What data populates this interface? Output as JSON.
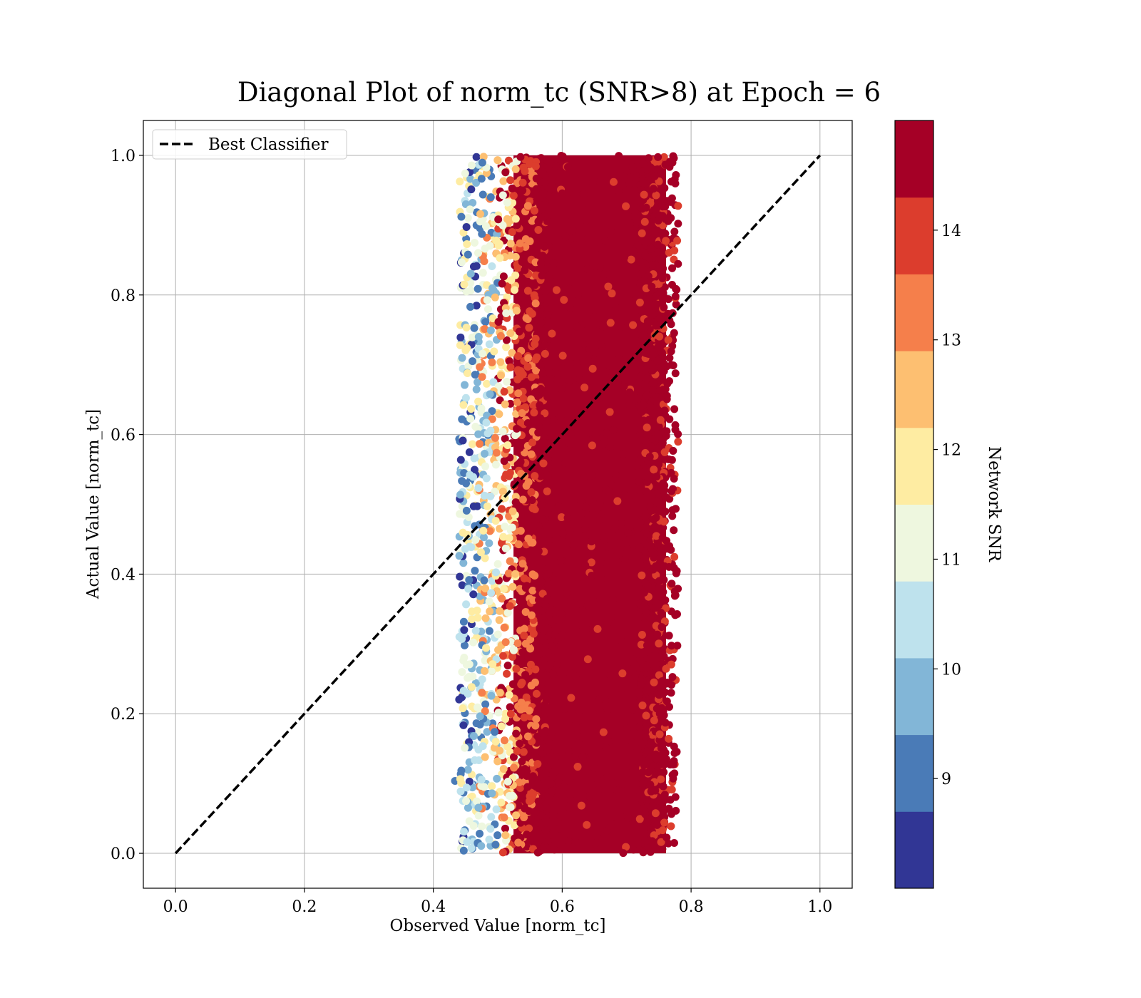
{
  "chart_data": {
    "type": "scatter",
    "title": "Diagonal Plot of norm_tc (SNR>8) at Epoch = 6",
    "xlabel": "Observed Value [norm_tc]",
    "ylabel": "Actual Value [norm_tc]",
    "xlim": [
      -0.05,
      1.05
    ],
    "ylim": [
      -0.05,
      1.05
    ],
    "xticks": [
      "0.0",
      "0.2",
      "0.4",
      "0.6",
      "0.8",
      "1.0"
    ],
    "yticks": [
      "0.0",
      "0.2",
      "0.4",
      "0.6",
      "0.8",
      "1.0"
    ],
    "grid": true,
    "legend": {
      "placement": "top-left",
      "entries": [
        "Best Classifier"
      ]
    },
    "reference_line": {
      "name": "Best Classifier",
      "x": [
        0.0,
        1.0
      ],
      "y": [
        0.0,
        1.0
      ],
      "style": "dashed",
      "color": "#000000"
    },
    "scatter_band": {
      "description_units": "data",
      "x_core": [
        0.52,
        0.77
      ],
      "x_full": [
        0.43,
        0.81
      ],
      "y_range": [
        0.0,
        1.0
      ]
    },
    "colorbar": {
      "label": "Network SNR",
      "range": [
        8,
        15
      ],
      "ticks": [
        "9",
        "10",
        "11",
        "12",
        "13",
        "14"
      ],
      "tick_values": [
        9,
        10,
        11,
        12,
        13,
        14
      ],
      "colors": [
        "#313695",
        "#4575b4",
        "#74add1",
        "#abd9e9",
        "#e0f3f8",
        "#ffffbf",
        "#fee090",
        "#fdae61",
        "#f46d43",
        "#d73027",
        "#a50026"
      ],
      "band_colors": [
        "#313695",
        "#4a7bb7",
        "#82b6d7",
        "#bee2ed",
        "#eef7df",
        "#feeca2",
        "#fdbf71",
        "#f57f4b",
        "#dc3d2d",
        "#a50026"
      ]
    }
  }
}
